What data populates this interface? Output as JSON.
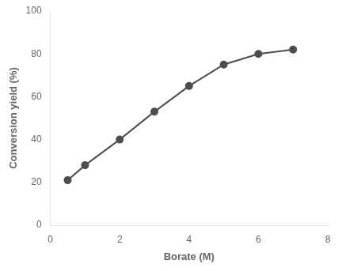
{
  "chart_data": {
    "type": "line",
    "x": [
      0.5,
      1.0,
      2.0,
      3.0,
      4.0,
      5.0,
      6.0,
      7.0
    ],
    "values": [
      21,
      28,
      40,
      53,
      65,
      75,
      80,
      82
    ],
    "xlabel": "Borate (M)",
    "ylabel": "Conversion yield (%)",
    "xlim": [
      0,
      8
    ],
    "ylim": [
      0,
      100
    ],
    "xticks": [
      0,
      2,
      4,
      6,
      8
    ],
    "yticks": [
      0,
      20,
      40,
      60,
      80,
      100
    ],
    "color": "#4d4d4d",
    "marker": "circle",
    "grid": false
  }
}
